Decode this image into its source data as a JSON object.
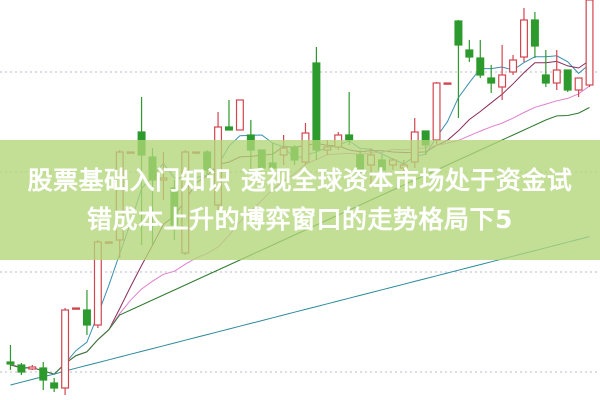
{
  "headline": {
    "line1": "股票基础入门知识 透视全球资本市场处于资金试",
    "line2": "错成本上升的博弈窗口的走势格局下5"
  },
  "colors": {
    "up": "#d2454f",
    "down": "#2c9a2c",
    "banner": "#b2d678",
    "ma": [
      "#3a8fb0",
      "#8a2a5a",
      "#e07fd0",
      "#2f7a2f",
      "#2a8a9a"
    ]
  },
  "chart_data": {
    "type": "candlestick",
    "title": "",
    "xlabel": "",
    "ylabel": "",
    "ylim": [
      0,
      40
    ],
    "grid": true,
    "moving_averages": [
      5,
      10,
      20,
      30,
      60
    ],
    "candles": [
      [
        3.8,
        5.5,
        3.0,
        3.6
      ],
      [
        3.5,
        3.7,
        2.5,
        2.8
      ],
      [
        3.1,
        3.5,
        3.0,
        3.3
      ],
      [
        3.2,
        3.8,
        1.0,
        2.0
      ],
      [
        1.7,
        2.2,
        0.8,
        1.2
      ],
      [
        1.2,
        9.2,
        0.5,
        9.0
      ],
      [
        9.2,
        9.2,
        9.2,
        9.2
      ],
      [
        9.0,
        11.0,
        6.5,
        7.5
      ],
      [
        7.5,
        16.0,
        7.2,
        15.8
      ],
      [
        15.8,
        15.8,
        15.8,
        15.8
      ],
      [
        16.0,
        25.0,
        14.2,
        24.8
      ],
      [
        24.8,
        24.8,
        24.8,
        24.8
      ],
      [
        26.8,
        30.3,
        15.5,
        24.5
      ],
      [
        24.3,
        25.2,
        15.5,
        22.0
      ],
      [
        22.0,
        24.8,
        20.0,
        22.2
      ],
      [
        21.2,
        22.0,
        16.0,
        17.5
      ],
      [
        14.7,
        25.0,
        14.5,
        24.8
      ],
      [
        24.8,
        24.8,
        24.8,
        24.8
      ],
      [
        24.8,
        25.0,
        22.5,
        23.0
      ],
      [
        19.5,
        28.8,
        19.0,
        27.3
      ],
      [
        27.3,
        30.0,
        27.0,
        27.0
      ],
      [
        27.0,
        30.0,
        27.0,
        30.0
      ],
      [
        26.5,
        28.0,
        23.0,
        25.0
      ],
      [
        25.0,
        25.0,
        23.0,
        23.2
      ],
      [
        23.7,
        25.7,
        23.0,
        23.2
      ],
      [
        24.5,
        26.5,
        23.5,
        25.2
      ],
      [
        25.3,
        25.5,
        23.5,
        24.0
      ],
      [
        23.8,
        27.7,
        23.5,
        26.7
      ],
      [
        33.7,
        35.3,
        24.0,
        25.0
      ],
      [
        25.0,
        26.0,
        24.5,
        25.3
      ],
      [
        25.3,
        26.8,
        25.0,
        26.5
      ],
      [
        26.5,
        30.8,
        25.5,
        26.0
      ],
      [
        24.5,
        25.0,
        22.5,
        23.0
      ],
      [
        23.5,
        25.2,
        21.5,
        24.5
      ],
      [
        24.0,
        24.5,
        22.5,
        23.0
      ],
      [
        23.5,
        24.2,
        23.0,
        24.0
      ],
      [
        23.2,
        24.0,
        22.5,
        23.5
      ],
      [
        23.8,
        28.2,
        23.2,
        26.8
      ],
      [
        26.9,
        26.9,
        24.5,
        25.5
      ],
      [
        26.0,
        31.8,
        25.5,
        31.7
      ],
      [
        31.7,
        31.7,
        31.7,
        31.7
      ],
      [
        37.9,
        38.0,
        28.2,
        35.5
      ],
      [
        35.0,
        36.0,
        33.8,
        34.3
      ],
      [
        34.2,
        36.0,
        32.2,
        32.5
      ],
      [
        32.2,
        33.5,
        30.7,
        31.7
      ],
      [
        31.3,
        35.5,
        30.0,
        32.5
      ],
      [
        32.8,
        34.5,
        32.5,
        34.0
      ],
      [
        34.3,
        39.2,
        33.8,
        38.0
      ],
      [
        38.0,
        38.8,
        34.2,
        35.4
      ],
      [
        32.5,
        35.0,
        31.3,
        31.7
      ],
      [
        31.7,
        35.0,
        31.0,
        33.0
      ],
      [
        33.0,
        33.0,
        30.8,
        31.0
      ],
      [
        31.0,
        32.2,
        30.3,
        32.2
      ],
      [
        31.5,
        40.0,
        31.3,
        40.0
      ]
    ]
  }
}
